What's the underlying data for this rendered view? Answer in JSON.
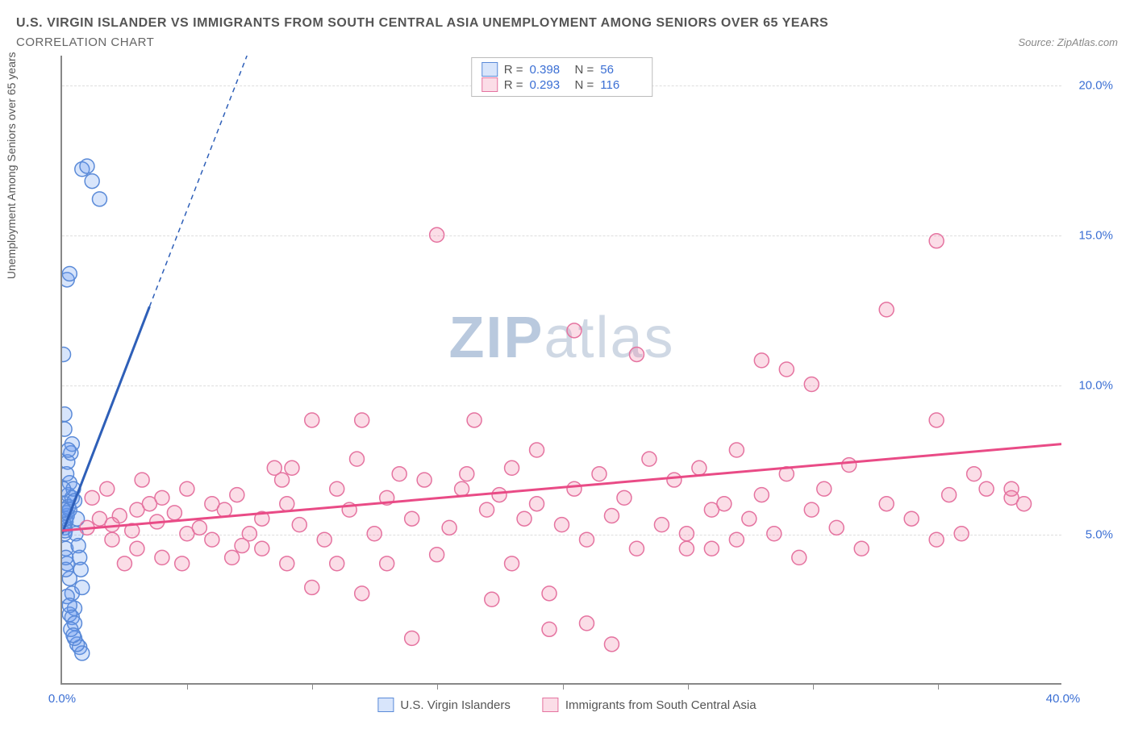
{
  "title": "U.S. VIRGIN ISLANDER VS IMMIGRANTS FROM SOUTH CENTRAL ASIA UNEMPLOYMENT AMONG SENIORS OVER 65 YEARS",
  "subtitle": "CORRELATION CHART",
  "source": "Source: ZipAtlas.com",
  "y_axis_label": "Unemployment Among Seniors over 65 years",
  "watermark_bold": "ZIP",
  "watermark_light": "atlas",
  "chart": {
    "type": "scatter",
    "xlim": [
      0,
      40
    ],
    "ylim": [
      0,
      21
    ],
    "x_ticks": [
      0,
      40
    ],
    "x_tick_labels": [
      "0.0%",
      "40.0%"
    ],
    "x_minor_ticks": [
      5,
      10,
      15,
      20,
      25,
      30,
      35
    ],
    "y_ticks": [
      5,
      10,
      15,
      20
    ],
    "y_tick_labels": [
      "5.0%",
      "10.0%",
      "15.0%",
      "20.0%"
    ],
    "background_color": "#ffffff",
    "grid_color": "#dddddd",
    "axis_color": "#888888",
    "marker_radius": 9,
    "marker_stroke_width": 1.5,
    "series": [
      {
        "name": "U.S. Virgin Islanders",
        "color_fill": "rgba(100,150,240,0.25)",
        "color_stroke": "#5a8ad8",
        "trend_color": "#2e5fb8",
        "trend_solid": [
          [
            0,
            5.0
          ],
          [
            3.5,
            12.6
          ]
        ],
        "trend_dashed": [
          [
            3.5,
            12.6
          ],
          [
            7.4,
            21.0
          ]
        ],
        "R": "0.398",
        "N": "56",
        "points": [
          [
            0.1,
            5.2
          ],
          [
            0.15,
            5.4
          ],
          [
            0.2,
            5.6
          ],
          [
            0.12,
            6.0
          ],
          [
            0.25,
            6.3
          ],
          [
            0.3,
            6.7
          ],
          [
            0.18,
            7.0
          ],
          [
            0.22,
            7.4
          ],
          [
            0.35,
            7.7
          ],
          [
            0.4,
            8.0
          ],
          [
            0.1,
            9.0
          ],
          [
            0.05,
            11.0
          ],
          [
            0.2,
            13.5
          ],
          [
            0.3,
            13.7
          ],
          [
            0.8,
            17.2
          ],
          [
            1.0,
            17.3
          ],
          [
            1.2,
            16.8
          ],
          [
            1.5,
            16.2
          ],
          [
            0.15,
            4.5
          ],
          [
            0.2,
            4.0
          ],
          [
            0.3,
            3.5
          ],
          [
            0.4,
            3.0
          ],
          [
            0.5,
            2.5
          ],
          [
            0.3,
            2.3
          ],
          [
            0.7,
            1.2
          ],
          [
            0.8,
            1.0
          ],
          [
            0.6,
            1.3
          ],
          [
            0.5,
            1.5
          ],
          [
            0.1,
            5.0
          ],
          [
            0.12,
            5.1
          ],
          [
            0.08,
            5.3
          ],
          [
            0.14,
            5.5
          ],
          [
            0.18,
            5.7
          ],
          [
            0.25,
            5.9
          ],
          [
            0.3,
            5.8
          ],
          [
            0.05,
            5.8
          ],
          [
            0.4,
            6.2
          ],
          [
            0.45,
            6.5
          ],
          [
            0.5,
            6.1
          ],
          [
            0.6,
            5.5
          ],
          [
            0.55,
            5.0
          ],
          [
            0.65,
            4.6
          ],
          [
            0.7,
            4.2
          ],
          [
            0.75,
            3.8
          ],
          [
            0.8,
            3.2
          ],
          [
            0.2,
            2.9
          ],
          [
            0.3,
            2.6
          ],
          [
            0.15,
            3.8
          ],
          [
            0.4,
            2.2
          ],
          [
            0.5,
            2.0
          ],
          [
            0.35,
            1.8
          ],
          [
            0.45,
            1.6
          ],
          [
            0.1,
            8.5
          ],
          [
            0.15,
            4.2
          ],
          [
            0.25,
            7.8
          ],
          [
            0.05,
            6.5
          ]
        ]
      },
      {
        "name": "Immigrants from South Central Asia",
        "color_fill": "rgba(240,120,160,0.25)",
        "color_stroke": "#e573a0",
        "trend_color": "#e94b86",
        "trend_solid": [
          [
            0,
            5.1
          ],
          [
            40,
            8.0
          ]
        ],
        "trend_dashed": null,
        "R": "0.293",
        "N": "116",
        "points": [
          [
            1.0,
            5.2
          ],
          [
            1.5,
            5.5
          ],
          [
            2.0,
            5.3
          ],
          [
            2.3,
            5.6
          ],
          [
            2.8,
            5.1
          ],
          [
            3.0,
            5.8
          ],
          [
            3.5,
            6.0
          ],
          [
            3.8,
            5.4
          ],
          [
            4.0,
            6.2
          ],
          [
            4.5,
            5.7
          ],
          [
            5.0,
            6.5
          ],
          [
            5.5,
            5.2
          ],
          [
            6.0,
            6.0
          ],
          [
            6.5,
            5.8
          ],
          [
            7.0,
            6.3
          ],
          [
            7.5,
            5.0
          ],
          [
            7.2,
            4.6
          ],
          [
            8.0,
            5.5
          ],
          [
            8.5,
            7.2
          ],
          [
            9.0,
            6.0
          ],
          [
            9.5,
            5.3
          ],
          [
            10.0,
            8.8
          ],
          [
            10.5,
            4.8
          ],
          [
            10.0,
            3.2
          ],
          [
            11.0,
            6.5
          ],
          [
            11.0,
            4.0
          ],
          [
            11.5,
            5.8
          ],
          [
            12.0,
            8.8
          ],
          [
            12.5,
            5.0
          ],
          [
            12.0,
            3.0
          ],
          [
            13.0,
            6.2
          ],
          [
            13.5,
            7.0
          ],
          [
            13.0,
            4.0
          ],
          [
            14.0,
            5.5
          ],
          [
            14.5,
            6.8
          ],
          [
            14.0,
            1.5
          ],
          [
            15.0,
            15.0
          ],
          [
            15.5,
            5.2
          ],
          [
            15.0,
            4.3
          ],
          [
            16.0,
            6.5
          ],
          [
            16.5,
            8.8
          ],
          [
            16.2,
            7.0
          ],
          [
            17.0,
            5.8
          ],
          [
            17.5,
            6.3
          ],
          [
            17.2,
            2.8
          ],
          [
            18.0,
            7.2
          ],
          [
            18.5,
            5.5
          ],
          [
            18.0,
            4.0
          ],
          [
            19.0,
            6.0
          ],
          [
            19.5,
            3.0
          ],
          [
            19.0,
            7.8
          ],
          [
            19.5,
            1.8
          ],
          [
            20.0,
            5.3
          ],
          [
            20.5,
            11.8
          ],
          [
            20.5,
            6.5
          ],
          [
            21.0,
            4.8
          ],
          [
            21.5,
            7.0
          ],
          [
            21.0,
            2.0
          ],
          [
            22.0,
            5.6
          ],
          [
            22.0,
            1.3
          ],
          [
            22.5,
            6.2
          ],
          [
            23.0,
            11.0
          ],
          [
            23.0,
            4.5
          ],
          [
            23.5,
            7.5
          ],
          [
            24.0,
            5.3
          ],
          [
            24.5,
            6.8
          ],
          [
            25.0,
            5.0
          ],
          [
            25.0,
            4.5
          ],
          [
            25.5,
            7.2
          ],
          [
            26.0,
            5.8
          ],
          [
            26.0,
            4.5
          ],
          [
            26.5,
            6.0
          ],
          [
            27.0,
            7.8
          ],
          [
            27.5,
            5.5
          ],
          [
            27.0,
            4.8
          ],
          [
            28.0,
            6.3
          ],
          [
            28.0,
            10.8
          ],
          [
            28.5,
            5.0
          ],
          [
            29.0,
            7.0
          ],
          [
            29.5,
            4.2
          ],
          [
            29.0,
            10.5
          ],
          [
            30.0,
            5.8
          ],
          [
            30.0,
            10.0
          ],
          [
            30.5,
            6.5
          ],
          [
            31.0,
            5.2
          ],
          [
            31.5,
            7.3
          ],
          [
            32.0,
            4.5
          ],
          [
            33.0,
            12.5
          ],
          [
            33.0,
            6.0
          ],
          [
            34.0,
            5.5
          ],
          [
            35.0,
            4.8
          ],
          [
            35.0,
            8.8
          ],
          [
            35.5,
            6.3
          ],
          [
            35.0,
            14.8
          ],
          [
            36.0,
            5.0
          ],
          [
            36.5,
            7.0
          ],
          [
            37.0,
            6.5
          ],
          [
            38.0,
            6.5
          ],
          [
            38.0,
            6.2
          ],
          [
            38.5,
            6.0
          ],
          [
            2.0,
            4.8
          ],
          [
            3.0,
            4.5
          ],
          [
            4.0,
            4.2
          ],
          [
            5.0,
            5.0
          ],
          [
            6.0,
            4.8
          ],
          [
            8.0,
            4.5
          ],
          [
            9.0,
            4.0
          ],
          [
            1.2,
            6.2
          ],
          [
            1.8,
            6.5
          ],
          [
            2.5,
            4.0
          ],
          [
            3.2,
            6.8
          ],
          [
            4.8,
            4.0
          ],
          [
            6.8,
            4.2
          ],
          [
            8.8,
            6.8
          ],
          [
            9.2,
            7.2
          ],
          [
            11.8,
            7.5
          ]
        ]
      }
    ]
  }
}
